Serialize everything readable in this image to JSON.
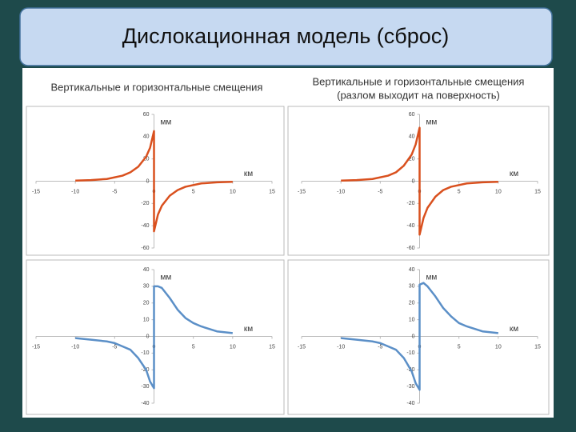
{
  "title": "Дислокационная модель (сброс)",
  "chart_data": [
    {
      "type": "line",
      "title": "Вертикальные и горизонтальные смещения",
      "x_label": "км",
      "y_label": "мм",
      "color": "#d9501e",
      "x": [
        -10,
        -8,
        -6,
        -4,
        -3,
        -2,
        -1,
        -0.5,
        0,
        0,
        0.5,
        1,
        2,
        3,
        4,
        6,
        8,
        10
      ],
      "values": [
        0.5,
        1,
        2,
        5,
        8,
        13,
        22,
        30,
        45,
        -45,
        -30,
        -22,
        -13,
        -8,
        -5,
        -2,
        -1,
        -0.5
      ],
      "xlim": [
        -15,
        15
      ],
      "xticks": [
        -15,
        -10,
        -5,
        0,
        5,
        10,
        15
      ],
      "ylim": [
        -60,
        60
      ],
      "yticks": [
        -60,
        -40,
        -20,
        0,
        20,
        40,
        60
      ]
    },
    {
      "type": "line",
      "title": "Вертикальные и горизонтальные смещения",
      "subtitle": "(разлом выходит на поверхность)",
      "x_label": "км",
      "y_label": "мм",
      "color": "#d9501e",
      "x": [
        -10,
        -8,
        -6,
        -4,
        -3,
        -2,
        -1,
        -0.5,
        0,
        0,
        0.5,
        1,
        2,
        3,
        4,
        6,
        8,
        10
      ],
      "values": [
        0.5,
        1,
        2,
        5,
        8,
        14,
        24,
        33,
        48,
        -48,
        -33,
        -24,
        -14,
        -8,
        -5,
        -2,
        -1,
        -0.5
      ],
      "xlim": [
        -15,
        15
      ],
      "xticks": [
        -15,
        -10,
        -5,
        0,
        5,
        10,
        15
      ],
      "ylim": [
        -60,
        60
      ],
      "yticks": [
        -60,
        -40,
        -20,
        0,
        20,
        40,
        60
      ]
    },
    {
      "type": "line",
      "x_label": "км",
      "y_label": "мм",
      "color": "#5b8fc7",
      "x": [
        -10,
        -8,
        -6,
        -5,
        -4,
        -3,
        -2,
        -1,
        -0.5,
        0,
        0,
        0.5,
        1,
        2,
        3,
        4,
        5,
        6,
        8,
        10
      ],
      "values": [
        -1,
        -2,
        -3,
        -4,
        -6,
        -8,
        -13,
        -20,
        -27,
        -31,
        30,
        30,
        29,
        23,
        16,
        11,
        8,
        6,
        3,
        2
      ],
      "xlim": [
        -15,
        15
      ],
      "xticks": [
        -15,
        -10,
        -5,
        0,
        5,
        10,
        15
      ],
      "ylim": [
        -40,
        40
      ],
      "yticks": [
        -40,
        -30,
        -20,
        -10,
        0,
        10,
        20,
        30,
        40
      ]
    },
    {
      "type": "line",
      "x_label": "км",
      "y_label": "мм",
      "color": "#5b8fc7",
      "x": [
        -10,
        -8,
        -6,
        -5,
        -4,
        -3,
        -2,
        -1,
        -0.5,
        0,
        0,
        0.5,
        1,
        2,
        3,
        4,
        5,
        6,
        8,
        10
      ],
      "values": [
        -1,
        -2,
        -3,
        -4,
        -6,
        -8,
        -13,
        -21,
        -28,
        -32,
        31,
        32,
        30,
        24,
        17,
        12,
        8,
        6,
        3,
        2
      ],
      "xlim": [
        -15,
        15
      ],
      "xticks": [
        -15,
        -10,
        -5,
        0,
        5,
        10,
        15
      ],
      "ylim": [
        -40,
        40
      ],
      "yticks": [
        -40,
        -30,
        -20,
        -10,
        0,
        10,
        20,
        30,
        40
      ]
    }
  ]
}
